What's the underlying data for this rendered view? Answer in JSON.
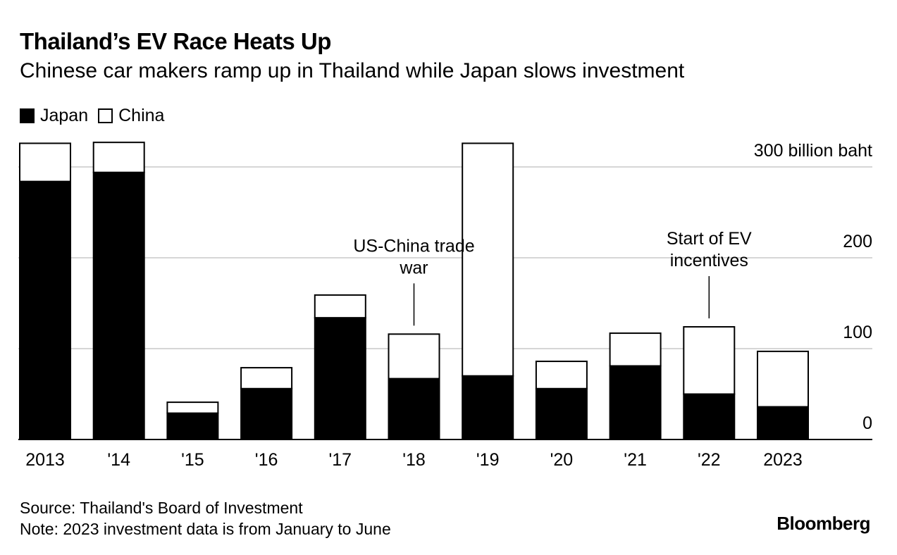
{
  "chart_data": {
    "type": "bar",
    "stacked": true,
    "title": "Thailand’s EV Race Heats Up",
    "subtitle": "Chinese car makers ramp up in Thailand while Japan slows investment",
    "categories": [
      "2013",
      "'14",
      "'15",
      "'16",
      "'17",
      "'18",
      "'19",
      "'20",
      "'21",
      "'22",
      "2023"
    ],
    "series": [
      {
        "name": "Japan",
        "color": "#000000",
        "values": [
          284,
          294,
          29,
          56,
          134,
          67,
          70,
          56,
          81,
          50,
          36
        ]
      },
      {
        "name": "China",
        "color": "#ffffff",
        "values": [
          42,
          33,
          12,
          23,
          25,
          49,
          256,
          30,
          36,
          74,
          61
        ]
      }
    ],
    "ylim": [
      0,
      300
    ],
    "yticks": [
      {
        "value": 300,
        "label": "300 billion baht"
      },
      {
        "value": 200,
        "label": "200"
      },
      {
        "value": 100,
        "label": "100"
      },
      {
        "value": 0,
        "label": "0"
      }
    ],
    "legend_position": "top-left",
    "annotations": [
      {
        "category_index": 5,
        "lines": [
          "US-China trade",
          "war"
        ]
      },
      {
        "category_index": 9,
        "lines": [
          "Start of EV",
          "incentives"
        ]
      }
    ]
  },
  "legend": {
    "japan": "Japan",
    "china": "China"
  },
  "footer": {
    "source": "Source: Thailand's Board of Investment",
    "note": "Note: 2023 investment data is from January to June"
  },
  "brand": "Bloomberg"
}
